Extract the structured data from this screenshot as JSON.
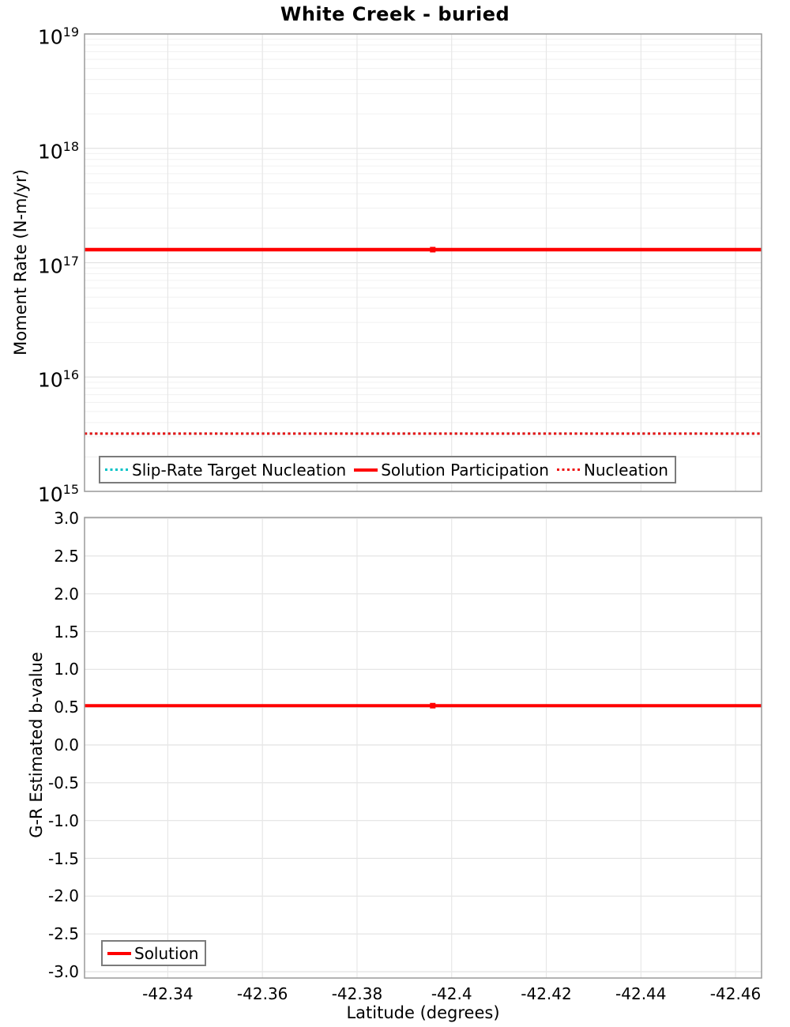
{
  "title": "White Creek - buried",
  "top_chart": {
    "ylabel": "Moment Rate (N-m/yr)"
  },
  "bottom_chart": {
    "ylabel": "G-R Estimated b-value",
    "xlabel": "Latitude (degrees)"
  },
  "colors": {
    "solution_red": "#ff0000",
    "nucleation_red": "#ee1111",
    "slip_rate_cyan": "#00c2c5",
    "grid_major": "#e2e2e2",
    "grid_minor": "#f0f0f0",
    "grid_vertical": "#e7e7e7",
    "frame": "#9a9a9a",
    "legend_border": "#7b7b7b"
  },
  "chart_data": [
    {
      "type": "line",
      "title": "White Creek - buried",
      "ylabel": "Moment Rate (N-m/yr)",
      "yscale": "log",
      "ylim": [
        1000000000000000.0,
        1e+19
      ],
      "y_tick_exponents": [
        19,
        18,
        17,
        16,
        15
      ],
      "xlim": [
        -42.3224,
        -42.4655
      ],
      "x_ticks": [
        -42.34,
        -42.36,
        -42.38,
        -42.4,
        -42.42,
        -42.44,
        -42.46
      ],
      "x_tick_labels": [
        "-42.34",
        "-42.36",
        "-42.38",
        "-42.4",
        "-42.42",
        "-42.44",
        "-42.46"
      ],
      "show_x_tick_labels": false,
      "grid": true,
      "legend_position": "inside-bottom-left-horizontal",
      "series": [
        {
          "name": "Slip-Rate Target Nucleation",
          "style": "dotted",
          "color": "#00c2c5",
          "x": [
            -42.3224,
            -42.4655
          ],
          "y": 3200000000000000.0,
          "note": "coincides with Nucleation line and is hidden beneath it"
        },
        {
          "name": "Solution Participation",
          "style": "solid",
          "color": "#ff0000",
          "x": [
            -42.3224,
            -42.4655
          ],
          "y": 1.3e+17,
          "marker_x": -42.396
        },
        {
          "name": "Nucleation",
          "style": "dotted",
          "color": "#ee1111",
          "x": [
            -42.3224,
            -42.4655
          ],
          "y": 3200000000000000.0
        }
      ]
    },
    {
      "type": "line",
      "ylabel": "G-R Estimated b-value",
      "xlabel": "Latitude (degrees)",
      "yscale": "linear",
      "ylim": [
        -3.0,
        3.0
      ],
      "y_ticks": [
        3.0,
        2.5,
        2.0,
        1.5,
        1.0,
        0.5,
        0.0,
        -0.5,
        -1.0,
        -1.5,
        -2.0,
        -2.5,
        -3.0
      ],
      "y_tick_labels": [
        "3.0",
        "2.5",
        "2.0",
        "1.5",
        "1.0",
        "0.5",
        "0.0",
        "-0.5",
        "-1.0",
        "-1.5",
        "-2.0",
        "-2.5",
        "-3.0"
      ],
      "xlim": [
        -42.3224,
        -42.4655
      ],
      "x_ticks": [
        -42.34,
        -42.36,
        -42.38,
        -42.4,
        -42.42,
        -42.44,
        -42.46
      ],
      "x_tick_labels": [
        "-42.34",
        "-42.36",
        "-42.38",
        "-42.4",
        "-42.42",
        "-42.44",
        "-42.46"
      ],
      "show_x_tick_labels": true,
      "grid": true,
      "legend_position": "inside-bottom-left",
      "series": [
        {
          "name": "Solution",
          "style": "solid",
          "color": "#ff0000",
          "x": [
            -42.3224,
            -42.4655
          ],
          "y": 0.52,
          "marker_x": -42.396
        }
      ]
    }
  ]
}
